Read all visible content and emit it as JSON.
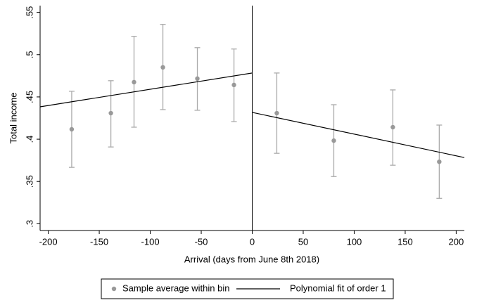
{
  "chart_data": {
    "type": "scatter",
    "x_label": "Arrival (days from June 8th 2018)",
    "y_label": "Total income",
    "xlim": [
      -208,
      208
    ],
    "ylim": [
      0.292,
      0.558
    ],
    "xticks": [
      -200,
      -150,
      -100,
      -50,
      0,
      50,
      100,
      150,
      200
    ],
    "yticks": [
      {
        "value": 0.3,
        "label": ".3"
      },
      {
        "value": 0.35,
        "label": ".35"
      },
      {
        "value": 0.4,
        "label": ".4"
      },
      {
        "value": 0.45,
        "label": ".45"
      },
      {
        "value": 0.5,
        "label": ".5"
      },
      {
        "value": 0.55,
        "label": ".55"
      }
    ],
    "series": [
      {
        "name": "Sample average within bin",
        "type": "scatter",
        "color": "#999999",
        "error_color": "#aaaaaa",
        "x": [
          -177,
          -138.6,
          -115.9,
          -87.6,
          -53.8,
          -17.9,
          24.1,
          80,
          137.9,
          183.4
        ],
        "values": [
          0.4117,
          0.4308,
          0.4675,
          0.485,
          0.4717,
          0.4642,
          0.4308,
          0.3983,
          0.4142,
          0.3733
        ],
        "low": [
          0.3667,
          0.3908,
          0.4142,
          0.435,
          0.4342,
          0.4208,
          0.3833,
          0.3558,
          0.3692,
          0.33
        ],
        "high": [
          0.4567,
          0.4692,
          0.5217,
          0.5358,
          0.5083,
          0.5067,
          0.4783,
          0.4408,
          0.4583,
          0.4167
        ]
      },
      {
        "name": "Polynomial fit of order 1",
        "type": "line",
        "color": "#000000",
        "x": [
          -208,
          0,
          null,
          0,
          208
        ],
        "values": [
          0.4383,
          0.4783,
          null,
          0.4317,
          0.3783
        ]
      }
    ]
  }
}
